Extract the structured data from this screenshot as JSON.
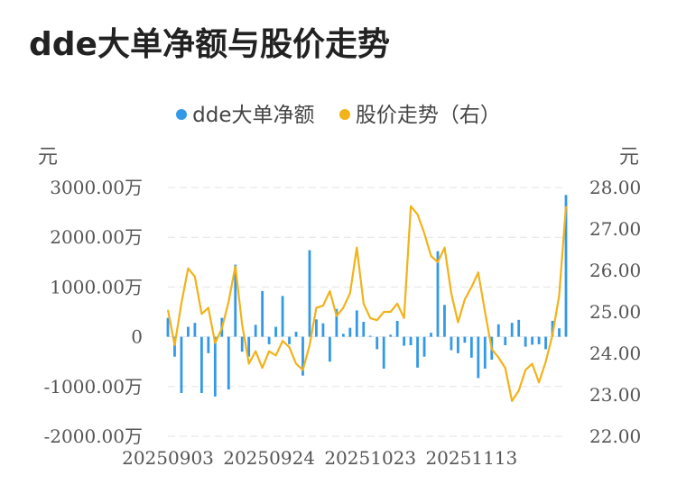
{
  "page": {
    "title": "dde大单净额与股价走势"
  },
  "legend": {
    "items": [
      {
        "label": "dde大单净额",
        "color": "#3399e6"
      },
      {
        "label": "股价走势（右）",
        "color": "#f2b21a"
      }
    ]
  },
  "axes": {
    "left_unit": "元",
    "right_unit": "元"
  },
  "chart_data": {
    "type": "bar+line",
    "title": "dde大单净额与股价走势",
    "x_tick_labels": [
      "20250903",
      "20250924",
      "20251023",
      "20251113"
    ],
    "y_left": {
      "range": [
        -2000,
        3000
      ],
      "ticks": [
        3000,
        2000,
        1000,
        0,
        -1000,
        -2000
      ],
      "tick_labels": [
        "3000.00万",
        "2000.00万",
        "1000.00万",
        "0",
        "-1000.00万",
        "-2000.00万"
      ],
      "unit": "元"
    },
    "y_right": {
      "range": [
        22,
        28
      ],
      "ticks": [
        28,
        27,
        26,
        25,
        24,
        23,
        22
      ],
      "tick_labels": [
        "28.00",
        "27.00",
        "26.00",
        "25.00",
        "24.00",
        "23.00",
        "22.00"
      ],
      "unit": "元"
    },
    "grid": true,
    "legend_position": "top-center",
    "series": [
      {
        "name": "dde大单净额",
        "kind": "bar",
        "axis": "left",
        "color": "#3399e6",
        "values": [
          380,
          -400,
          -1130,
          200,
          280,
          -1130,
          -330,
          -1200,
          380,
          -1060,
          1450,
          -300,
          -400,
          240,
          920,
          -150,
          200,
          820,
          -150,
          100,
          -780,
          1740,
          350,
          270,
          -500,
          560,
          60,
          180,
          530,
          300,
          20,
          -250,
          -640,
          40,
          320,
          -180,
          -170,
          -620,
          -400,
          80,
          1720,
          640,
          -270,
          -330,
          -120,
          -420,
          -830,
          -640,
          -460,
          250,
          -170,
          280,
          340,
          -200,
          -160,
          -150,
          -250,
          320,
          170,
          2850
        ]
      },
      {
        "name": "股价走势（右）",
        "kind": "line",
        "axis": "right",
        "color": "#f2b21a",
        "values": [
          25.05,
          24.2,
          25.2,
          26.05,
          25.85,
          24.95,
          25.1,
          24.25,
          24.6,
          25.25,
          26.1,
          24.7,
          23.75,
          24.05,
          23.65,
          24.05,
          23.95,
          24.3,
          24.15,
          23.75,
          23.6,
          24.2,
          25.1,
          25.15,
          25.5,
          24.9,
          25.1,
          25.45,
          26.55,
          25.2,
          24.85,
          24.8,
          25.0,
          25.0,
          25.2,
          24.85,
          27.55,
          27.35,
          26.9,
          26.35,
          26.2,
          26.55,
          25.45,
          24.75,
          25.3,
          25.6,
          25.95,
          25.0,
          24.1,
          23.9,
          23.65,
          22.85,
          23.1,
          23.6,
          23.75,
          23.3,
          23.8,
          24.45,
          25.4,
          27.55
        ]
      }
    ]
  }
}
